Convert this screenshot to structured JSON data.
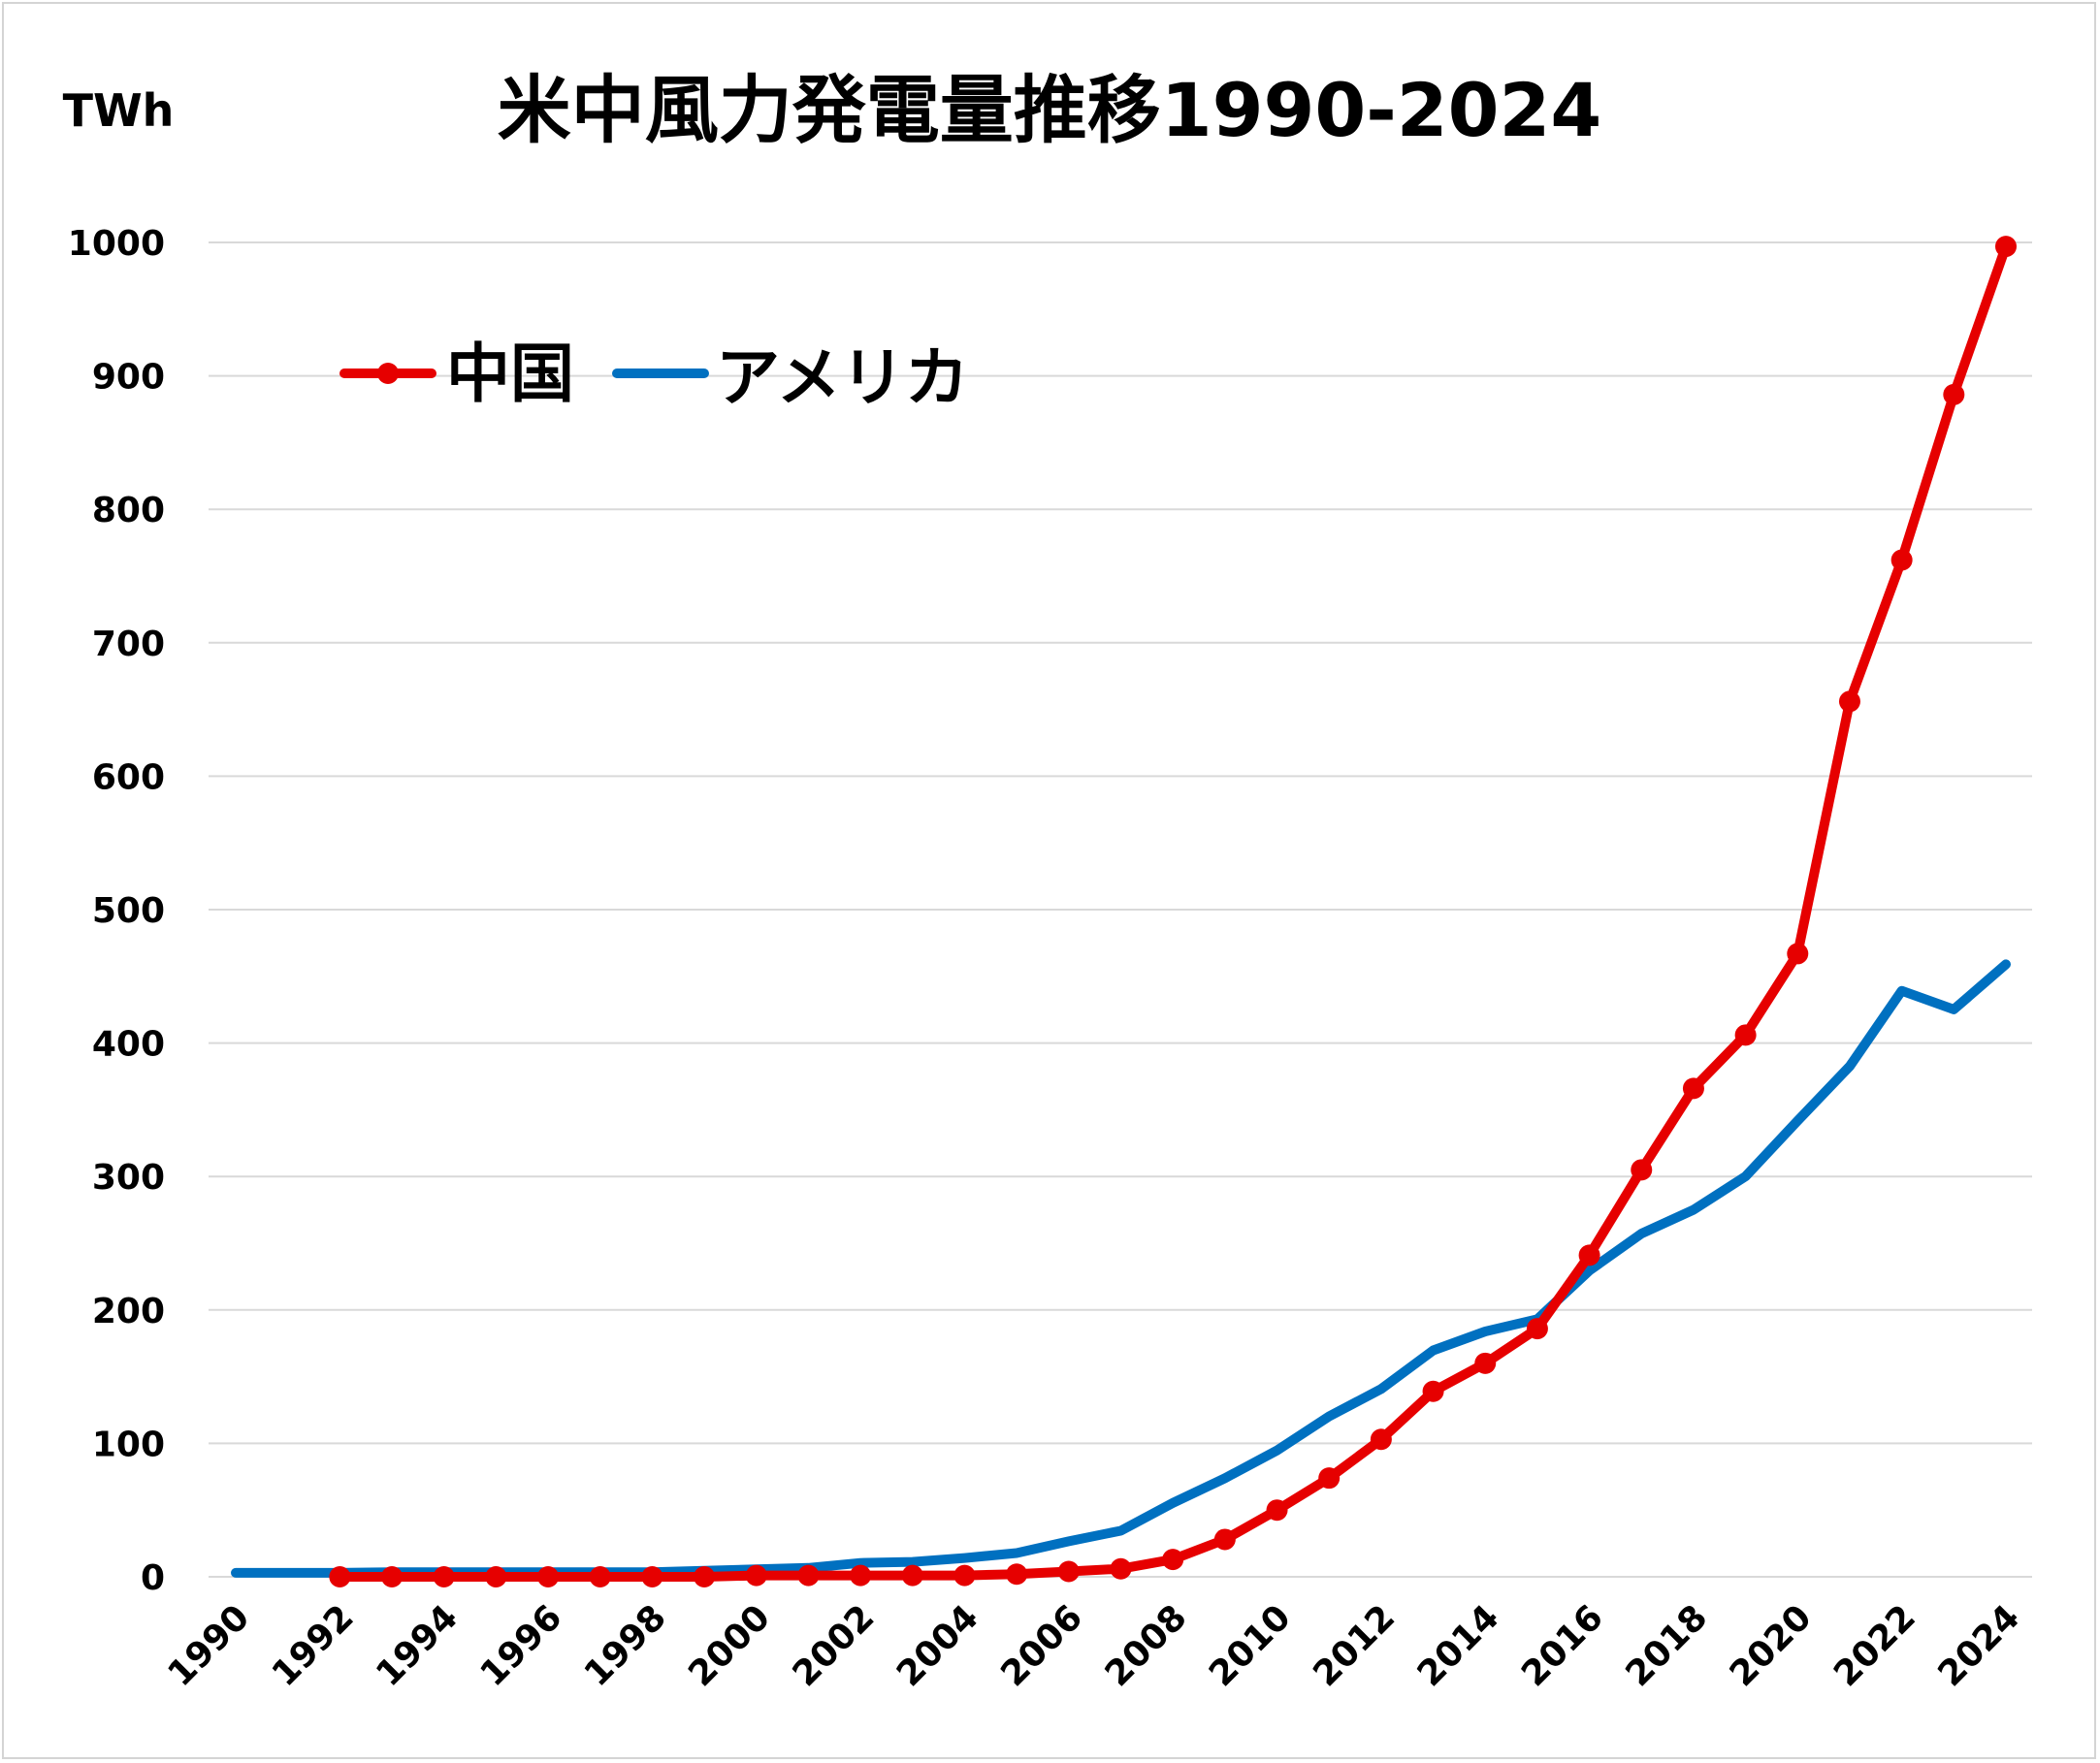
{
  "chart_data": {
    "type": "line",
    "title": "米中風力発電量推移1990-2024",
    "ylabel": "TWh",
    "xlabel": "",
    "ylim": [
      0,
      1000
    ],
    "yticks": [
      0,
      100,
      200,
      300,
      400,
      500,
      600,
      700,
      800,
      900,
      1000
    ],
    "grid": true,
    "legend_position": "top-left",
    "x": [
      1990,
      1991,
      1992,
      1993,
      1994,
      1995,
      1996,
      1997,
      1998,
      1999,
      2000,
      2001,
      2002,
      2003,
      2004,
      2005,
      2006,
      2007,
      2008,
      2009,
      2010,
      2011,
      2012,
      2013,
      2014,
      2015,
      2016,
      2017,
      2018,
      2019,
      2020,
      2021,
      2022,
      2023,
      2024
    ],
    "xtick_labels": [
      "1990",
      "1992",
      "1994",
      "1996",
      "1998",
      "2000",
      "2002",
      "2004",
      "2006",
      "2008",
      "2010",
      "2012",
      "2014",
      "2016",
      "2018",
      "2020",
      "2022",
      "2024"
    ],
    "series": [
      {
        "name": "中国",
        "color": "#e60000",
        "markers": true,
        "x": [
          1992,
          1993,
          1994,
          1995,
          1996,
          1997,
          1998,
          1999,
          2000,
          2001,
          2002,
          2003,
          2004,
          2005,
          2006,
          2007,
          2008,
          2009,
          2010,
          2011,
          2012,
          2013,
          2014,
          2015,
          2016,
          2017,
          2018,
          2019,
          2020,
          2021,
          2022,
          2023,
          2024
        ],
        "values": [
          0,
          0,
          0,
          0,
          0,
          0,
          0,
          0,
          1,
          1,
          1,
          1,
          1,
          2,
          4,
          6,
          13,
          28,
          50,
          74,
          103,
          139,
          160,
          186,
          241,
          305,
          366,
          406,
          467,
          656,
          762,
          886,
          997
        ]
      },
      {
        "name": "アメリカ",
        "color": "#0070c0",
        "markers": false,
        "x": [
          1990,
          1991,
          1992,
          1993,
          1994,
          1995,
          1996,
          1997,
          1998,
          1999,
          2000,
          2001,
          2002,
          2003,
          2004,
          2005,
          2006,
          2007,
          2008,
          2009,
          2010,
          2011,
          2012,
          2013,
          2014,
          2015,
          2016,
          2017,
          2018,
          2019,
          2020,
          2021,
          2022,
          2023,
          2024
        ],
        "values": [
          3,
          3,
          3,
          3.5,
          3.5,
          3.5,
          3.5,
          3.5,
          3.5,
          4.5,
          5.6,
          6.7,
          10.4,
          11.2,
          14.1,
          17.8,
          26.6,
          34.5,
          55.4,
          73.9,
          94.7,
          120.2,
          140.8,
          169.7,
          183.9,
          193,
          229.5,
          257.2,
          275,
          300.1,
          341.8,
          382.6,
          439.2,
          425.2,
          459
        ]
      }
    ]
  }
}
